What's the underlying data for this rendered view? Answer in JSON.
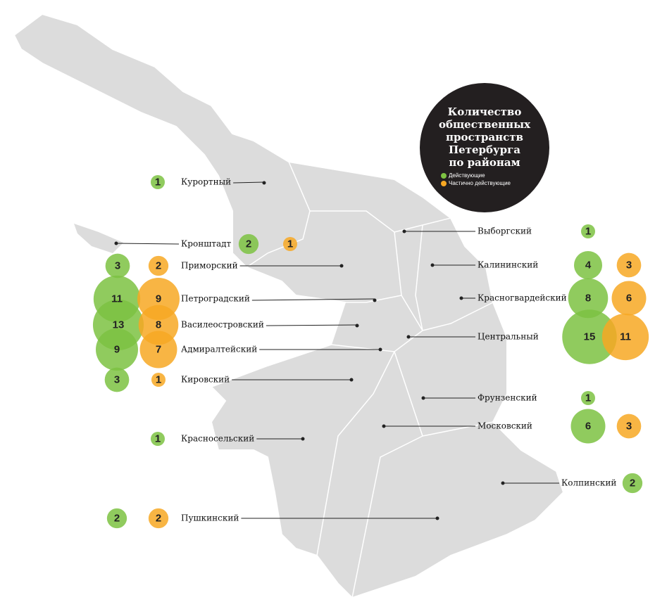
{
  "title_lines": [
    "Количество",
    "общественных",
    "пространств",
    "Петербурга",
    "по районам"
  ],
  "legend": {
    "active": "Действующие",
    "partial": "Частично действующие"
  },
  "colors": {
    "active": "#7dc242",
    "partial": "#f7a823"
  },
  "districts": [
    {
      "name": "Курортный",
      "active": 1
    },
    {
      "name": "Кронштадт",
      "active": 2,
      "partial": 1
    },
    {
      "name": "Приморский",
      "active": 3,
      "partial": 2
    },
    {
      "name": "Петроградский",
      "active": 11,
      "partial": 9
    },
    {
      "name": "Василеостровский",
      "active": 13,
      "partial": 8
    },
    {
      "name": "Адмиралтейский",
      "active": 9,
      "partial": 7
    },
    {
      "name": "Кировский",
      "active": 3,
      "partial": 1
    },
    {
      "name": "Красносельский",
      "active": 1
    },
    {
      "name": "Пушкинский",
      "active": 2,
      "partial": 2
    },
    {
      "name": "Выборгский",
      "active": 1
    },
    {
      "name": "Калининский",
      "active": 4,
      "partial": 3
    },
    {
      "name": "Красногвардейский",
      "active": 8,
      "partial": 6
    },
    {
      "name": "Центральный",
      "active": 15,
      "partial": 11
    },
    {
      "name": "Фрунзенский",
      "active": 1
    },
    {
      "name": "Московский",
      "active": 6,
      "partial": 3
    },
    {
      "name": "Колпинский",
      "active": 2
    }
  ]
}
